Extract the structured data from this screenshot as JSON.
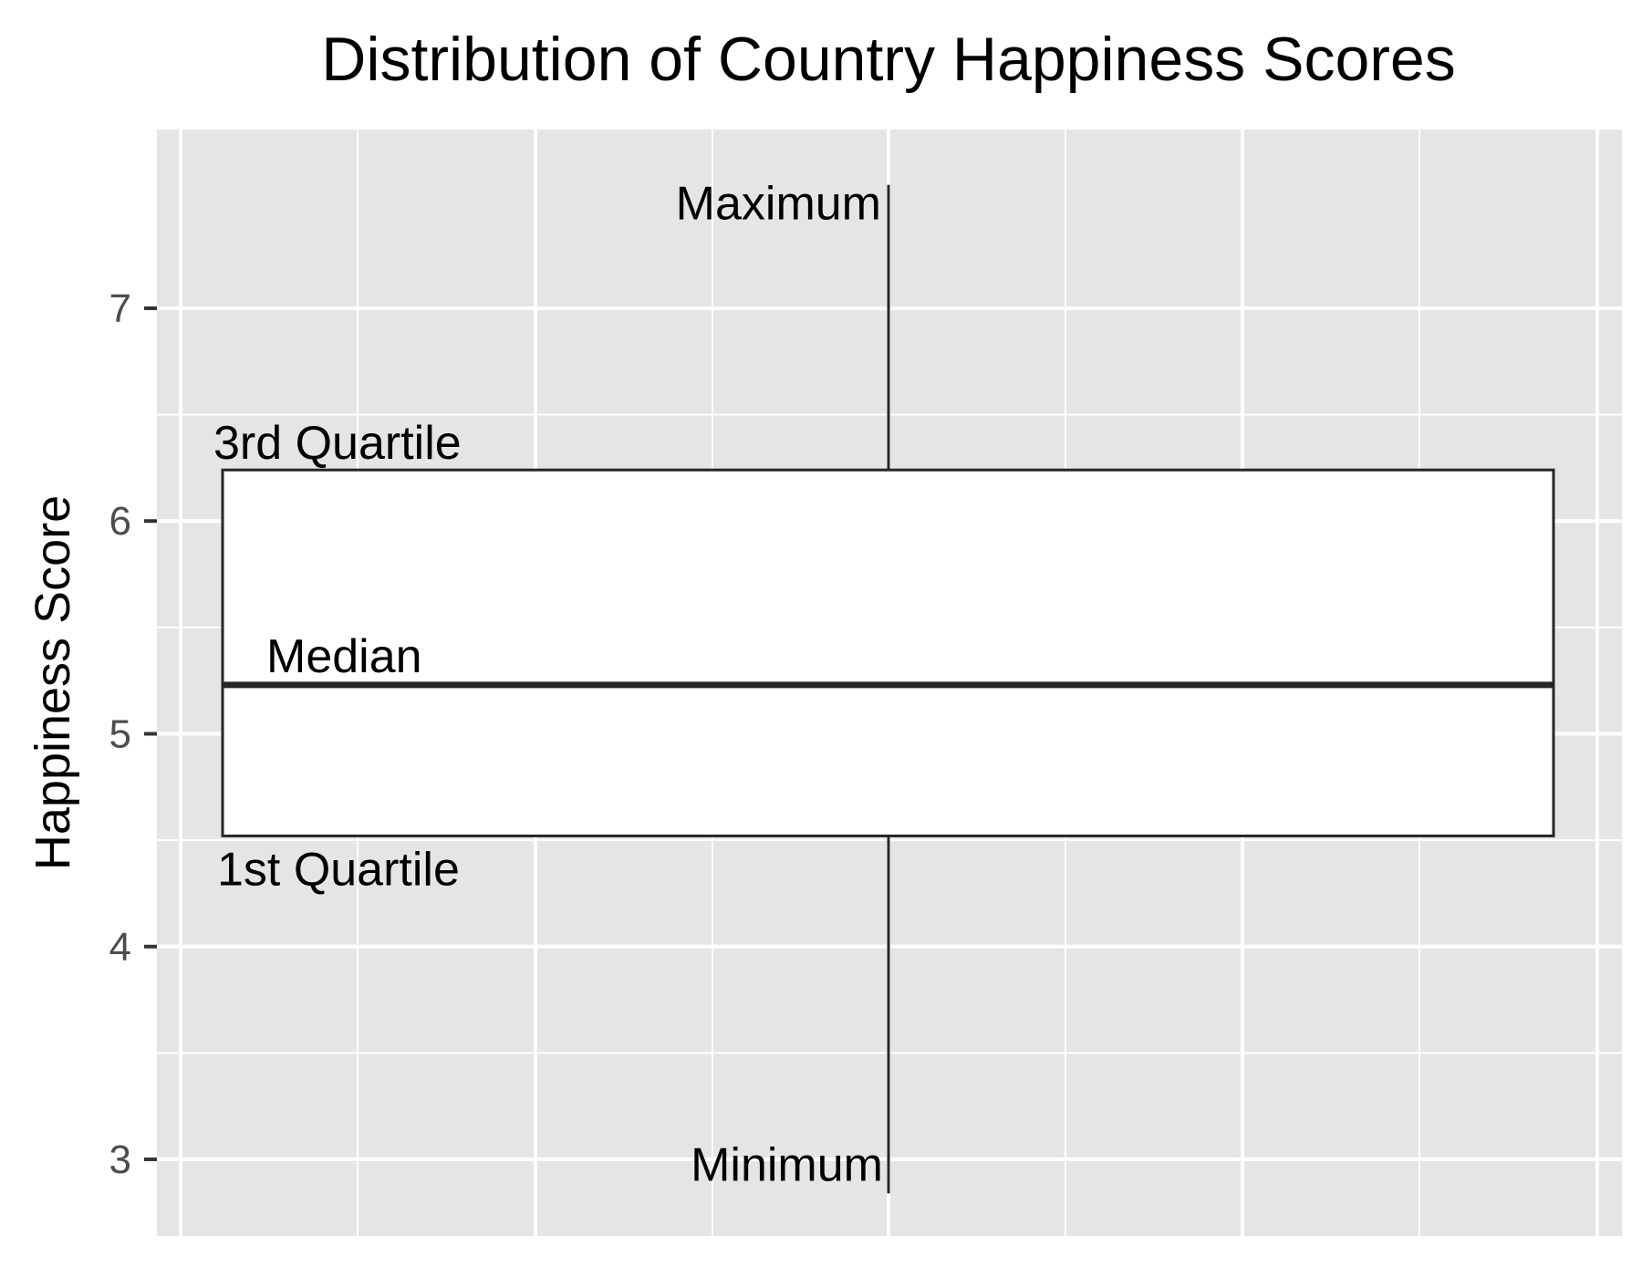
{
  "chart_data": {
    "type": "boxplot",
    "title": "Distribution of Country Happiness Scores",
    "xlabel": "",
    "ylabel": "Happiness Score",
    "ylim": [
      2.64,
      7.84
    ],
    "y_ticks": [
      3,
      4,
      5,
      6,
      7
    ],
    "grid": true,
    "stats": {
      "minimum": 2.84,
      "q1": 4.52,
      "median": 5.23,
      "q3": 6.24,
      "maximum": 7.58
    },
    "annotations": {
      "maximum": "Maximum",
      "q3": "3rd Quartile",
      "median": "Median",
      "q1": "1st Quartile",
      "minimum": "Minimum"
    },
    "colors": {
      "panel": "#e5e5e5",
      "grid": "#ffffff",
      "box_fill": "#ffffff",
      "box_line": "#262626",
      "tick_text": "#4d4d4d"
    }
  }
}
